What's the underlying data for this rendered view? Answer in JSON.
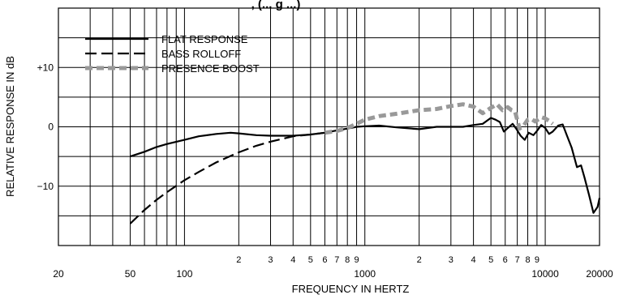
{
  "chart_data": {
    "type": "line",
    "title": ", (... g ...)",
    "xlabel": "FREQUENCY IN HERTZ",
    "ylabel": "RELATIVE RESPONSE IN dB",
    "x_scale": "log",
    "xlim": [
      20,
      20000
    ],
    "ylim": [
      -20,
      20
    ],
    "grid": true,
    "legend_position": "top-left",
    "x_major_ticks": [
      {
        "value": 20,
        "label": "20"
      },
      {
        "value": 50,
        "label": "50"
      },
      {
        "value": 100,
        "label": "100"
      },
      {
        "value": 1000,
        "label": "1000"
      },
      {
        "value": 10000,
        "label": "10000"
      },
      {
        "value": 20000,
        "label": "20000"
      }
    ],
    "x_minor_ticks": [
      {
        "value": 200,
        "label": "2"
      },
      {
        "value": 300,
        "label": "3"
      },
      {
        "value": 400,
        "label": "4"
      },
      {
        "value": 500,
        "label": "5"
      },
      {
        "value": 600,
        "label": "6"
      },
      {
        "value": 700,
        "label": "7"
      },
      {
        "value": 800,
        "label": "8"
      },
      {
        "value": 900,
        "label": "9"
      },
      {
        "value": 2000,
        "label": "2"
      },
      {
        "value": 3000,
        "label": "3"
      },
      {
        "value": 4000,
        "label": "4"
      },
      {
        "value": 5000,
        "label": "5"
      },
      {
        "value": 6000,
        "label": "6"
      },
      {
        "value": 7000,
        "label": "7"
      },
      {
        "value": 8000,
        "label": "8"
      },
      {
        "value": 9000,
        "label": "9"
      }
    ],
    "y_ticks": [
      {
        "value": 10,
        "label": "+10"
      },
      {
        "value": 0,
        "label": "0"
      },
      {
        "value": -10,
        "label": "−10"
      }
    ],
    "series": [
      {
        "name": "FLAT RESPONSE",
        "style": "solid",
        "color": "#000000",
        "points": [
          [
            50,
            -5
          ],
          [
            60,
            -4.2
          ],
          [
            70,
            -3.4
          ],
          [
            80,
            -2.9
          ],
          [
            100,
            -2.2
          ],
          [
            120,
            -1.6
          ],
          [
            150,
            -1.2
          ],
          [
            180,
            -1.0
          ],
          [
            200,
            -1.1
          ],
          [
            250,
            -1.4
          ],
          [
            300,
            -1.5
          ],
          [
            400,
            -1.5
          ],
          [
            500,
            -1.3
          ],
          [
            600,
            -1.0
          ],
          [
            700,
            -0.6
          ],
          [
            800,
            -0.3
          ],
          [
            900,
            0
          ],
          [
            1000,
            0.1
          ],
          [
            1200,
            0.2
          ],
          [
            1500,
            -0.1
          ],
          [
            2000,
            -0.4
          ],
          [
            2500,
            0
          ],
          [
            3000,
            0
          ],
          [
            3500,
            0
          ],
          [
            4000,
            0.3
          ],
          [
            4500,
            0.5
          ],
          [
            5000,
            1.5
          ],
          [
            5300,
            1.2
          ],
          [
            5600,
            0.8
          ],
          [
            5900,
            -0.8
          ],
          [
            6200,
            -0.2
          ],
          [
            6600,
            0.5
          ],
          [
            6900,
            -0.3
          ],
          [
            7300,
            -1.5
          ],
          [
            7700,
            -2.2
          ],
          [
            8100,
            -1.0
          ],
          [
            8600,
            -1.4
          ],
          [
            9000,
            -0.7
          ],
          [
            9500,
            0.3
          ],
          [
            10000,
            -0.2
          ],
          [
            10500,
            -1.2
          ],
          [
            11000,
            -0.8
          ],
          [
            11800,
            0.2
          ],
          [
            12500,
            0.4
          ],
          [
            13200,
            -1.5
          ],
          [
            14000,
            -3.5
          ],
          [
            15000,
            -6.8
          ],
          [
            15800,
            -6.5
          ],
          [
            16500,
            -8.5
          ],
          [
            17500,
            -11.5
          ],
          [
            18500,
            -14.5
          ],
          [
            19500,
            -13.5
          ],
          [
            20000,
            -12
          ]
        ]
      },
      {
        "name": "BASS ROLLOFF",
        "style": "dashed",
        "color": "#000000",
        "points": [
          [
            50,
            -16.3
          ],
          [
            60,
            -14
          ],
          [
            70,
            -12.3
          ],
          [
            80,
            -11
          ],
          [
            100,
            -9
          ],
          [
            120,
            -7.6
          ],
          [
            150,
            -6
          ],
          [
            200,
            -4.3
          ],
          [
            250,
            -3.2
          ],
          [
            300,
            -2.5
          ],
          [
            400,
            -1.6
          ],
          [
            500,
            -1.3
          ],
          [
            600,
            -1.0
          ]
        ]
      },
      {
        "name": "PRESENCE BOOST",
        "style": "dotted",
        "color": "#999999",
        "points": [
          [
            600,
            -1.0
          ],
          [
            700,
            -0.7
          ],
          [
            800,
            -0.2
          ],
          [
            900,
            0.5
          ],
          [
            1000,
            1.2
          ],
          [
            1200,
            1.8
          ],
          [
            1500,
            2.2
          ],
          [
            2000,
            2.8
          ],
          [
            2500,
            3.0
          ],
          [
            3000,
            3.5
          ],
          [
            3500,
            3.8
          ],
          [
            4000,
            3.4
          ],
          [
            4500,
            2.3
          ],
          [
            5000,
            3.2
          ],
          [
            5400,
            3.8
          ],
          [
            5800,
            2.8
          ],
          [
            6200,
            3.3
          ],
          [
            6500,
            2.8
          ],
          [
            6800,
            2.6
          ],
          [
            7200,
            -0.3
          ],
          [
            7600,
            0.2
          ],
          [
            8000,
            1.2
          ],
          [
            8400,
            1.3
          ],
          [
            8800,
            0.9
          ],
          [
            9200,
            1.3
          ],
          [
            9600,
            1.6
          ],
          [
            10000,
            1.4
          ],
          [
            10500,
            1.0
          ],
          [
            11000,
            0.5
          ]
        ]
      }
    ]
  }
}
